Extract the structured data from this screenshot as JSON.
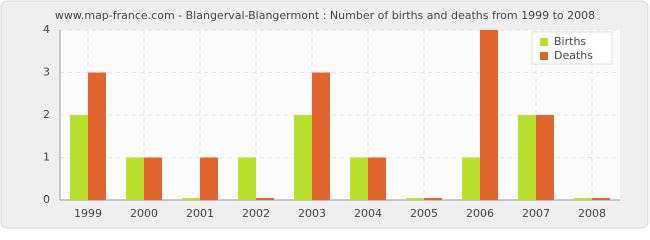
{
  "chart_data": {
    "type": "bar",
    "title": "www.map-france.com - Blangerval-Blangermont : Number of births and deaths from 1999 to 2008",
    "categories": [
      "1999",
      "2000",
      "2001",
      "2002",
      "2003",
      "2004",
      "2005",
      "2006",
      "2007",
      "2008"
    ],
    "series": [
      {
        "name": "Births",
        "color": "#b8e02c",
        "values": [
          2,
          1,
          0,
          1,
          2,
          1,
          0,
          1,
          2,
          0
        ]
      },
      {
        "name": "Deaths",
        "color": "#e0652f",
        "values": [
          3,
          1,
          1,
          0,
          3,
          1,
          0,
          4,
          2,
          0
        ]
      }
    ],
    "ylim": [
      0,
      4
    ],
    "yticks": [
      0,
      1,
      2,
      3,
      4
    ],
    "grid": true,
    "legend": "top-right"
  }
}
